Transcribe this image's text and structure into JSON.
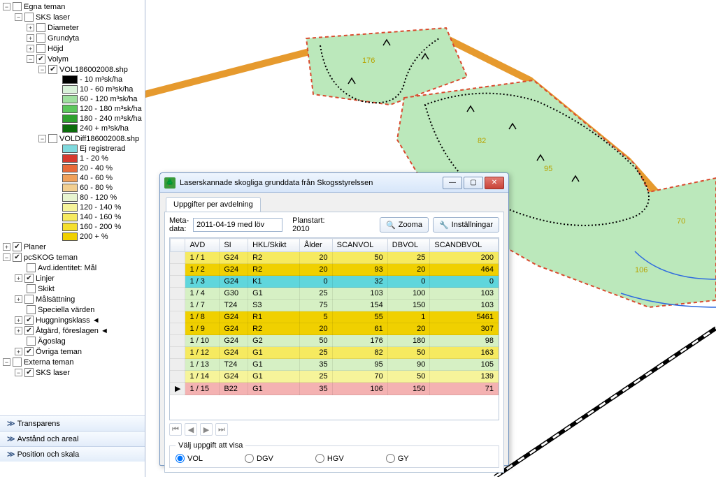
{
  "tree": {
    "egna_teman": "Egna teman",
    "sks_laser": "SKS laser",
    "diameter": "Diameter",
    "grundyta": "Grundyta",
    "hojd": "Höjd",
    "volym": "Volym",
    "vol_file": "VOL186002008.shp",
    "voldiff_file": "VOLDiff186002008.shp",
    "planer": "Planer",
    "pcskog": "pcSKOG teman",
    "avd_id": "Avd.identitet: Mål",
    "linjer": "Linjer",
    "skikt": "Skikt",
    "malsattning": "Målsättning",
    "speciella": "Speciella värden",
    "huggning": "Huggningsklass ◄",
    "atgard": "Åtgärd, föreslagen ◄",
    "agoslag": "Ägoslag",
    "ovriga": "Övriga teman",
    "externa": "Externa teman",
    "sks_laser2": "SKS laser"
  },
  "legend_vol": [
    {
      "c": "#000000",
      "t": "- 10 m³sk/ha"
    },
    {
      "c": "#d9f2d9",
      "t": "10 - 60 m³sk/ha"
    },
    {
      "c": "#9fe09f",
      "t": "60 - 120 m³sk/ha"
    },
    {
      "c": "#5cc75c",
      "t": "120 - 180 m³sk/ha"
    },
    {
      "c": "#2ea02e",
      "t": "180 - 240 m³sk/ha"
    },
    {
      "c": "#0b6b0b",
      "t": "240 + m³sk/ha"
    }
  ],
  "legend_diff": [
    {
      "c": "#7fd9dd",
      "t": "Ej registrerad"
    },
    {
      "c": "#d63a2e",
      "t": "1 - 20  %"
    },
    {
      "c": "#e86b3a",
      "t": "20 - 40  %"
    },
    {
      "c": "#f0a15a",
      "t": "40 - 60  %"
    },
    {
      "c": "#f2cf90",
      "t": "60 - 80  %"
    },
    {
      "c": "#e8f5d0",
      "t": "80 - 120  %"
    },
    {
      "c": "#f6f49a",
      "t": "120 - 140  %"
    },
    {
      "c": "#f6ea60",
      "t": "140 - 160  %"
    },
    {
      "c": "#f5df2c",
      "t": "160 - 200  %"
    },
    {
      "c": "#f0d000",
      "t": "200 +  %"
    }
  ],
  "accordion": {
    "transparens": "Transparens",
    "avstand": "Avstånd och areal",
    "position": "Position och skala"
  },
  "map_labels": {
    "a": "176",
    "b": "82",
    "c": "95",
    "d": "70",
    "e": "106"
  },
  "dialog": {
    "title": "Laserskannade skogliga grunddata från Skogsstyrelssen",
    "tab": "Uppgifter per avdelning",
    "meta_label": "Meta-\ndata:",
    "meta_value": "2011-04-19 med löv",
    "planstart_label": "Planstart:",
    "planstart_value": "2010",
    "zoom": "Zooma",
    "settings": "Inställningar",
    "fieldset": "Välj uppgift att visa",
    "radios": {
      "vol": "VOL",
      "dgv": "DGV",
      "hgv": "HGV",
      "gy": "GY"
    }
  },
  "columns": [
    "AVD",
    "SI",
    "HKL/Skikt",
    "Ålder",
    "SCANVOL",
    "DBVOL",
    "SCANDBVOL"
  ],
  "rows": [
    {
      "c": [
        "1 / 1",
        "G24",
        "R2",
        "20",
        "50",
        "25",
        "200"
      ],
      "bg": "#f6ea60"
    },
    {
      "c": [
        "1 / 2",
        "G24",
        "R2",
        "20",
        "93",
        "20",
        "464"
      ],
      "bg": "#f0d000"
    },
    {
      "c": [
        "1 / 3",
        "G24",
        "K1",
        "0",
        "32",
        "0",
        "0"
      ],
      "bg": "#5fd6dc"
    },
    {
      "c": [
        "1 / 4",
        "G30",
        "G1",
        "25",
        "103",
        "100",
        "103"
      ],
      "bg": "#d6f0c4"
    },
    {
      "c": [
        "1 / 7",
        "T24",
        "S3",
        "75",
        "154",
        "150",
        "103"
      ],
      "bg": "#d6f0c4"
    },
    {
      "c": [
        "1 / 8",
        "G24",
        "R1",
        "5",
        "55",
        "1",
        "5461"
      ],
      "bg": "#f0d000"
    },
    {
      "c": [
        "1 / 9",
        "G24",
        "R2",
        "20",
        "61",
        "20",
        "307"
      ],
      "bg": "#f0d000"
    },
    {
      "c": [
        "1 / 10",
        "G24",
        "G2",
        "50",
        "176",
        "180",
        "98"
      ],
      "bg": "#d6f0c4"
    },
    {
      "c": [
        "1 / 12",
        "G24",
        "G1",
        "25",
        "82",
        "50",
        "163"
      ],
      "bg": "#f6ea60"
    },
    {
      "c": [
        "1 / 13",
        "T24",
        "G1",
        "35",
        "95",
        "90",
        "105"
      ],
      "bg": "#d6f0c4"
    },
    {
      "c": [
        "1 / 14",
        "G24",
        "G1",
        "25",
        "70",
        "50",
        "139"
      ],
      "bg": "#f6f49a"
    },
    {
      "c": [
        "1 / 15",
        "B22",
        "G1",
        "35",
        "106",
        "150",
        "71"
      ],
      "bg": "#f4b2b2",
      "sel": true
    }
  ],
  "colors": {
    "parcel_fill": "#bbe8bb",
    "parcel_stroke": "#d94a2e",
    "road": "#e69a2e",
    "rail": "#222222",
    "water": "#2e6adf"
  }
}
